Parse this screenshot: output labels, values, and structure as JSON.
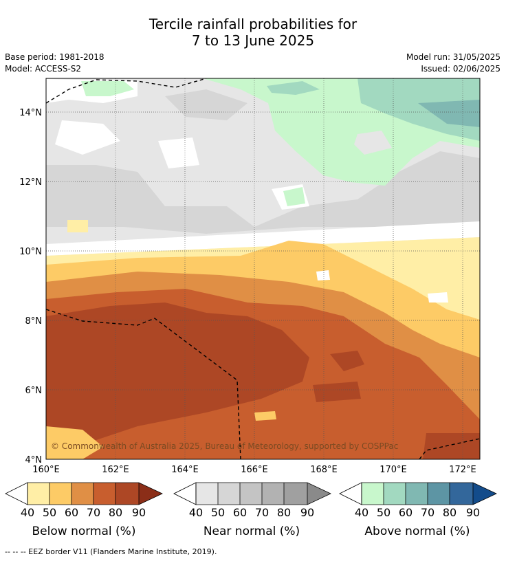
{
  "title_line1": "Tercile rainfall probabilities for",
  "title_line2": "7 to 13 June 2025",
  "meta": {
    "base_period": "Base period: 1981-2018",
    "model": "Model: ACCESS-S2",
    "model_run": "Model run: 31/05/2025",
    "issued": "Issued: 02/06/2025"
  },
  "map": {
    "lat_labels": [
      "14°N",
      "12°N",
      "10°N",
      "8°N",
      "6°N",
      "4°N"
    ],
    "lon_labels": [
      "160°E",
      "162°E",
      "164°E",
      "166°E",
      "168°E",
      "170°E",
      "172°E"
    ],
    "copyright": "© Commonwealth of Australia 2025, Bureau of Meteorology, supported by COSPPac"
  },
  "legends": [
    {
      "title": "Below normal (%)",
      "ticks": [
        "40",
        "50",
        "60",
        "70",
        "80",
        "90"
      ],
      "colors": [
        "#ffeea6",
        "#fdcb66",
        "#e08f45",
        "#c85e2e",
        "#ad4725",
        "#8b2e18"
      ]
    },
    {
      "title": "Near normal (%)",
      "ticks": [
        "40",
        "50",
        "60",
        "70",
        "80",
        "90"
      ],
      "colors": [
        "#e6e6e6",
        "#d6d6d6",
        "#c4c4c4",
        "#b2b2b2",
        "#a0a0a0",
        "#8a8a8a"
      ]
    },
    {
      "title": "Above normal (%)",
      "ticks": [
        "40",
        "50",
        "60",
        "70",
        "80",
        "90"
      ],
      "colors": [
        "#c8f7cc",
        "#a2d9c0",
        "#80b8b2",
        "#5d95a4",
        "#33679b",
        "#134c8b"
      ]
    }
  ],
  "footer": "--  --  -- EEZ border V11 (Flanders Marine Institute, 2019)."
}
